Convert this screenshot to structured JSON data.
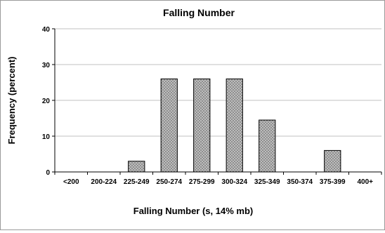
{
  "chart_data": {
    "type": "bar",
    "title": "Falling Number",
    "xlabel": "Falling Number (s, 14% mb)",
    "ylabel": "Frequency (percent)",
    "categories": [
      "<200",
      "200-224",
      "225-249",
      "250-274",
      "275-299",
      "300-324",
      "325-349",
      "350-374",
      "375-399",
      "400+"
    ],
    "values": [
      0,
      0,
      3,
      26,
      26,
      26,
      14.5,
      0,
      6,
      0
    ],
    "yticks": [
      "0",
      "10",
      "20",
      "30",
      "40"
    ],
    "ylim": [
      0,
      40
    ],
    "grid": true,
    "bar_fill": "dotted gray pattern",
    "colors": {
      "bar_fill": "#bdbdbd",
      "bar_dot": "#6e6e6e",
      "bar_stroke": "#000000",
      "grid": "#c0c0c0"
    }
  }
}
